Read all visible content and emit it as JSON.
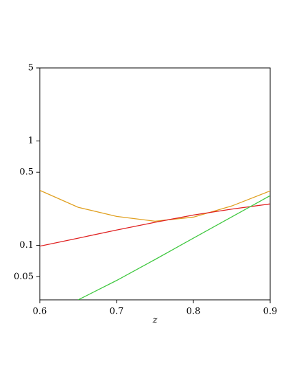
{
  "chart_data": {
    "type": "line",
    "xlabel": "z",
    "x": [
      0.6,
      0.65,
      0.7,
      0.75,
      0.8,
      0.85,
      0.9
    ],
    "series": [
      {
        "color": "#e0a020",
        "values": [
          0.336,
          0.231,
          0.189,
          0.17,
          0.186,
          0.238,
          0.332
        ]
      },
      {
        "color": "#e02020",
        "values": [
          0.098,
          0.117,
          0.14,
          0.166,
          0.195,
          0.222,
          0.249
        ]
      },
      {
        "color": "#40c840",
        "values": [
          null,
          0.03,
          0.046,
          0.073,
          0.117,
          0.187,
          0.299
        ]
      }
    ],
    "xlim": [
      0.6,
      0.9
    ],
    "xticks": [
      0.6,
      0.7,
      0.8,
      0.9
    ],
    "ylim": [
      0.03,
      5
    ],
    "yticks": [
      0.05,
      0.1,
      0.5,
      1,
      5
    ],
    "log_y": true
  }
}
